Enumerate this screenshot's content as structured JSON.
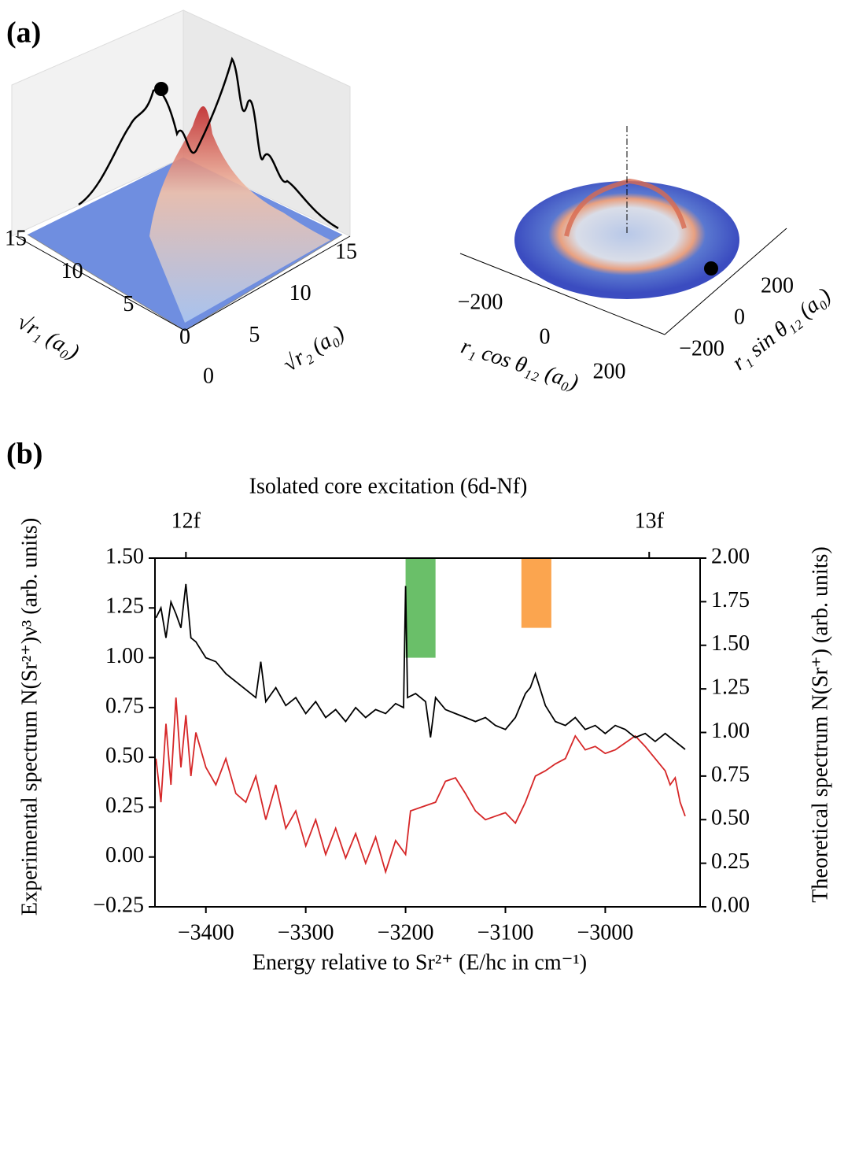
{
  "chart_data": [
    {
      "type": "surface3d",
      "panel_label": "(a)",
      "xlabel": "√r₁ (a₀)",
      "ylabel": "√r₂ (a₀)",
      "xlim": [
        0,
        15
      ],
      "xticks": [
        0,
        5,
        10,
        15
      ],
      "ylim": [
        0,
        15
      ],
      "yticks": [
        0,
        5,
        10,
        15
      ]
    },
    {
      "type": "polar-surface3d",
      "xlabel": "r₁ cos θ₁₂ (a₀)",
      "ylabel": "r₁ sin θ₁₂ (a₀)",
      "xlim": [
        -250,
        250
      ],
      "xticks": [
        {
          "value": -200,
          "label": "−200"
        },
        0,
        200
      ],
      "ylim": [
        -250,
        250
      ],
      "yticks": [
        {
          "value": -200,
          "label": "−200"
        },
        0,
        200
      ]
    },
    {
      "type": "line",
      "panel_label": "(b)",
      "title": "Isolated core excitation (6d-Nf)",
      "xlabel": "Energy relative to Sr²⁺ (E/hc in cm⁻¹)",
      "ylabel": "Experimental spectrum N(Sr²⁺)ν³ (arb. units)",
      "y2label": "Theoretical spectrum N(Sr⁺) (arb. units)",
      "xlim": [
        -3451,
        -2905
      ],
      "xticks": [
        {
          "value": -3400,
          "label": "−3400"
        },
        {
          "value": -3300,
          "label": "−3300"
        },
        {
          "value": -3200,
          "label": "−3200"
        },
        {
          "value": -3100,
          "label": "−3100"
        },
        {
          "value": -3000,
          "label": "−3000"
        }
      ],
      "top_xticks": [
        {
          "value": -3420,
          "label": "12f"
        },
        {
          "value": -2956,
          "label": "13f"
        }
      ],
      "ylim": [
        -0.25,
        1.5
      ],
      "yticks": [
        {
          "value": -0.25,
          "label": "−0.25"
        },
        {
          "value": 0,
          "label": "0.00"
        },
        {
          "value": 0.25,
          "label": "0.25"
        },
        {
          "value": 0.5,
          "label": "0.50"
        },
        {
          "value": 0.75,
          "label": "0.75"
        },
        {
          "value": 1,
          "label": "1.00"
        },
        {
          "value": 1.25,
          "label": "1.25"
        },
        {
          "value": 1.5,
          "label": "1.50"
        }
      ],
      "y2lim": [
        0,
        2
      ],
      "y2ticks": [
        {
          "value": 0,
          "label": "0.00"
        },
        {
          "value": 0.25,
          "label": "0.25"
        },
        {
          "value": 0.5,
          "label": "0.50"
        },
        {
          "value": 0.75,
          "label": "0.75"
        },
        {
          "value": 1,
          "label": "1.00"
        },
        {
          "value": 1.25,
          "label": "1.25"
        },
        {
          "value": 1.5,
          "label": "1.50"
        },
        {
          "value": 1.75,
          "label": "1.75"
        },
        {
          "value": 2,
          "label": "2.00"
        }
      ],
      "spans": [
        {
          "xmin": -3200,
          "xmax": -3170,
          "ymin": 1.0,
          "ymax": 1.5,
          "color": "#6abf69"
        },
        {
          "xmin": -3084,
          "xmax": -3054,
          "ymin": 1.15,
          "ymax": 1.5,
          "color": "#fba54f"
        }
      ],
      "series": [
        {
          "color": "#000000",
          "x": [
            -3450,
            -3445,
            -3440,
            -3435,
            -3430,
            -3425,
            -3420,
            -3415,
            -3410,
            -3400,
            -3390,
            -3380,
            -3370,
            -3360,
            -3350,
            -3345,
            -3340,
            -3330,
            -3320,
            -3310,
            -3300,
            -3290,
            -3280,
            -3270,
            -3260,
            -3250,
            -3240,
            -3230,
            -3220,
            -3210,
            -3202,
            -3200,
            -3198,
            -3190,
            -3180,
            -3175,
            -3170,
            -3160,
            -3150,
            -3140,
            -3130,
            -3120,
            -3110,
            -3100,
            -3090,
            -3080,
            -3075,
            -3070,
            -3060,
            -3050,
            -3040,
            -3030,
            -3020,
            -3010,
            -3000,
            -2990,
            -2980,
            -2970,
            -2960,
            -2950,
            -2940,
            -2930,
            -2920
          ],
          "values": [
            1.2,
            1.25,
            1.1,
            1.28,
            1.22,
            1.15,
            1.37,
            1.1,
            1.08,
            1.0,
            0.98,
            0.92,
            0.88,
            0.84,
            0.8,
            0.98,
            0.78,
            0.85,
            0.76,
            0.8,
            0.72,
            0.78,
            0.7,
            0.74,
            0.68,
            0.75,
            0.7,
            0.74,
            0.72,
            0.77,
            0.75,
            1.36,
            0.8,
            0.82,
            0.78,
            0.6,
            0.8,
            0.74,
            0.72,
            0.7,
            0.68,
            0.7,
            0.66,
            0.64,
            0.7,
            0.82,
            0.85,
            0.92,
            0.76,
            0.68,
            0.66,
            0.7,
            0.64,
            0.66,
            0.62,
            0.66,
            0.64,
            0.6,
            0.62,
            0.58,
            0.62,
            0.58,
            0.54
          ]
        },
        {
          "color": "#d62728",
          "axis": "y2",
          "x": [
            -3450,
            -3445,
            -3440,
            -3435,
            -3430,
            -3425,
            -3420,
            -3415,
            -3410,
            -3400,
            -3390,
            -3380,
            -3370,
            -3360,
            -3350,
            -3340,
            -3330,
            -3320,
            -3310,
            -3300,
            -3290,
            -3280,
            -3270,
            -3260,
            -3250,
            -3240,
            -3230,
            -3220,
            -3210,
            -3200,
            -3195,
            -3180,
            -3170,
            -3160,
            -3150,
            -3140,
            -3130,
            -3120,
            -3110,
            -3100,
            -3090,
            -3080,
            -3070,
            -3060,
            -3050,
            -3040,
            -3030,
            -3020,
            -3010,
            -3000,
            -2990,
            -2980,
            -2970,
            -2960,
            -2950,
            -2940,
            -2935,
            -2930,
            -2925,
            -2920
          ],
          "values": [
            0.85,
            0.6,
            1.05,
            0.7,
            1.2,
            0.8,
            1.1,
            0.75,
            1.0,
            0.8,
            0.7,
            0.85,
            0.65,
            0.6,
            0.75,
            0.5,
            0.7,
            0.45,
            0.55,
            0.35,
            0.5,
            0.3,
            0.45,
            0.28,
            0.42,
            0.25,
            0.4,
            0.2,
            0.38,
            0.3,
            0.55,
            0.58,
            0.6,
            0.72,
            0.74,
            0.65,
            0.55,
            0.5,
            0.52,
            0.54,
            0.48,
            0.6,
            0.75,
            0.78,
            0.82,
            0.85,
            0.98,
            0.9,
            0.92,
            0.88,
            0.9,
            0.94,
            0.98,
            0.92,
            0.85,
            0.78,
            0.7,
            0.74,
            0.6,
            0.52
          ]
        }
      ]
    }
  ]
}
